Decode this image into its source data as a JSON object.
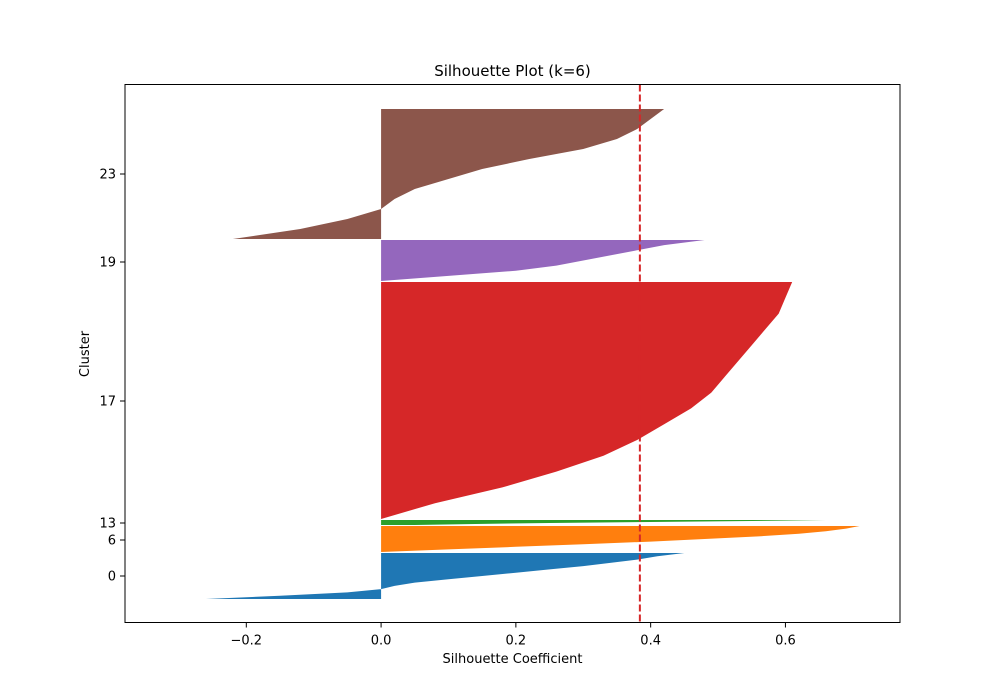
{
  "chart_data": {
    "type": "area",
    "orientation": "horizontal",
    "title": "Silhouette Plot (k=6)",
    "xlabel": "Silhouette Coefficient",
    "ylabel": "Cluster",
    "xlim": [
      -0.38,
      0.77
    ],
    "grid": false,
    "x_ticks": [
      -0.2,
      0.0,
      0.2,
      0.4,
      0.6
    ],
    "x_tick_labels": [
      "−0.2",
      "0.0",
      "0.2",
      "0.4",
      "0.6"
    ],
    "y_tick_labels": [
      "0",
      "6",
      "13",
      "17",
      "19",
      "23"
    ],
    "average_silhouette": 0.384,
    "average_line_color": "#d62728",
    "clusters": [
      {
        "label": "0",
        "color": "#1f77b4",
        "samples": 65,
        "values": [
          0.45,
          0.41,
          0.38,
          0.34,
          0.3,
          0.25,
          0.2,
          0.15,
          0.1,
          0.05,
          0.02,
          0.0,
          -0.05,
          -0.15,
          -0.26
        ]
      },
      {
        "label": "6",
        "color": "#ff7f0e",
        "samples": 45,
        "values": [
          0.71,
          0.69,
          0.66,
          0.62,
          0.56,
          0.48,
          0.4,
          0.3,
          0.2,
          0.1,
          0.0
        ]
      },
      {
        "label": "13",
        "color": "#2ca02c",
        "samples": 9,
        "values": [
          0.66,
          0.55,
          0.4,
          0.25,
          0.14,
          0.05
        ]
      },
      {
        "label": "17",
        "color": "#d62728",
        "samples": 410,
        "values": [
          0.61,
          0.6,
          0.59,
          0.57,
          0.55,
          0.53,
          0.51,
          0.49,
          0.46,
          0.42,
          0.38,
          0.33,
          0.26,
          0.18,
          0.08,
          0.0
        ]
      },
      {
        "label": "19",
        "color": "#9467bd",
        "samples": 72,
        "values": [
          0.48,
          0.42,
          0.38,
          0.34,
          0.3,
          0.26,
          0.2,
          0.1,
          0.0
        ]
      },
      {
        "label": "23",
        "color": "#8c564b",
        "samples": 225,
        "values": [
          0.42,
          0.4,
          0.38,
          0.35,
          0.3,
          0.22,
          0.15,
          0.1,
          0.05,
          0.02,
          0.0,
          -0.05,
          -0.12,
          -0.22
        ]
      }
    ]
  }
}
